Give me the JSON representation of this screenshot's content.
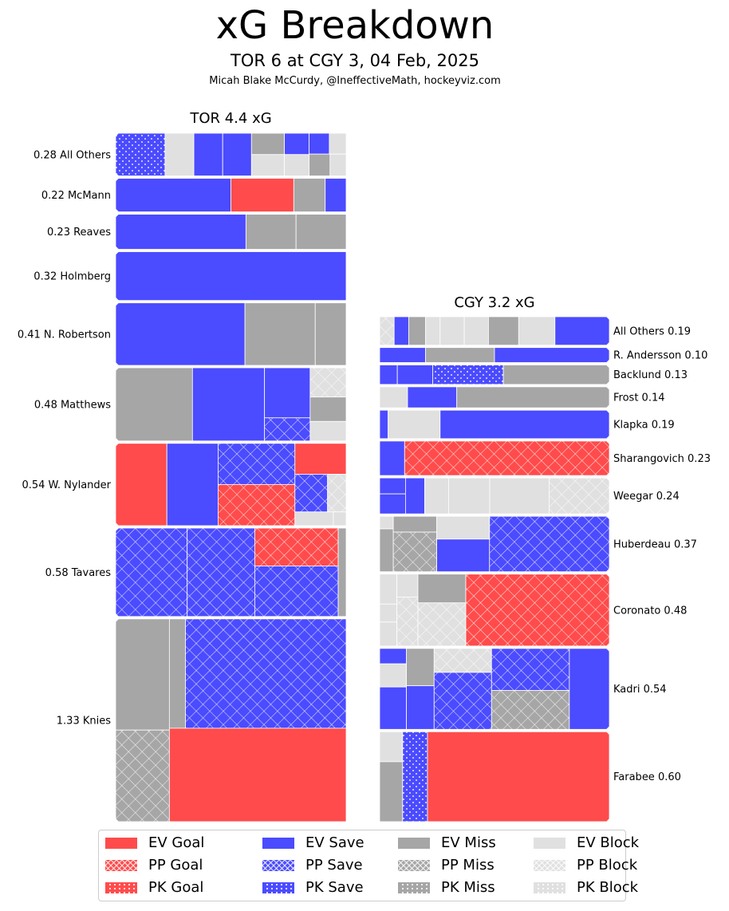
{
  "title": "xG Breakdown",
  "subtitle": "TOR 6 at CGY 3, 04 Feb, 2025",
  "credit": "Micah Blake McCurdy, @IneffectiveMath, hockeyviz.com",
  "colors": {
    "goal": "#ff4b4b",
    "save": "#4b4bff",
    "miss": "#a6a6a6",
    "block": "#e0e0e0"
  },
  "legend": {
    "items": [
      {
        "label": "EV Goal",
        "outcome": "goal",
        "situation": "EV"
      },
      {
        "label": "PP Goal",
        "outcome": "goal",
        "situation": "PP"
      },
      {
        "label": "PK Goal",
        "outcome": "goal",
        "situation": "PK"
      },
      {
        "label": "EV Save",
        "outcome": "save",
        "situation": "EV"
      },
      {
        "label": "PP Save",
        "outcome": "save",
        "situation": "PP"
      },
      {
        "label": "PK Save",
        "outcome": "save",
        "situation": "PK"
      },
      {
        "label": "EV Miss",
        "outcome": "miss",
        "situation": "EV"
      },
      {
        "label": "PP Miss",
        "outcome": "miss",
        "situation": "PP"
      },
      {
        "label": "PK Miss",
        "outcome": "miss",
        "situation": "PK"
      },
      {
        "label": "EV Block",
        "outcome": "block",
        "situation": "EV"
      },
      {
        "label": "PP Block",
        "outcome": "block",
        "situation": "PP"
      },
      {
        "label": "PK Block",
        "outcome": "block",
        "situation": "PK"
      }
    ]
  },
  "chart_data": [
    {
      "type": "treemap",
      "team": "TOR",
      "title": "TOR 4.4 xG",
      "total_xg": 4.4,
      "players": [
        {
          "name": "All Others",
          "label": "0.28 All Others",
          "xg": 0.28,
          "shots": [
            {
              "o": "save",
              "s": "PK",
              "xg": 0.06
            },
            {
              "o": "block",
              "s": "EV",
              "xg": 0.035
            },
            {
              "o": "save",
              "s": "EV",
              "xg": 0.035
            },
            {
              "o": "save",
              "s": "EV",
              "xg": 0.035
            },
            {
              "o": "miss",
              "s": "EV",
              "xg": 0.02
            },
            {
              "o": "block",
              "s": "EV",
              "xg": 0.02
            },
            {
              "o": "save",
              "s": "EV",
              "xg": 0.015
            },
            {
              "o": "block",
              "s": "EV",
              "xg": 0.015
            },
            {
              "o": "save",
              "s": "EV",
              "xg": 0.012
            },
            {
              "o": "block",
              "s": "EV",
              "xg": 0.01
            },
            {
              "o": "miss",
              "s": "EV",
              "xg": 0.013
            },
            {
              "o": "block",
              "s": "EV",
              "xg": 0.01
            }
          ]
        },
        {
          "name": "McMann",
          "label": "0.22 McMann",
          "xg": 0.22,
          "shots": [
            {
              "o": "save",
              "s": "EV",
              "xg": 0.11
            },
            {
              "o": "goal",
              "s": "EV",
              "xg": 0.06
            },
            {
              "o": "miss",
              "s": "EV",
              "xg": 0.03
            },
            {
              "o": "save",
              "s": "EV",
              "xg": 0.02
            }
          ]
        },
        {
          "name": "Reaves",
          "label": "0.23 Reaves",
          "xg": 0.23,
          "shots": [
            {
              "o": "save",
              "s": "EV",
              "xg": 0.13
            },
            {
              "o": "miss",
              "s": "EV",
              "xg": 0.05
            },
            {
              "o": "miss",
              "s": "EV",
              "xg": 0.05
            }
          ]
        },
        {
          "name": "Holmberg",
          "label": "0.32 Holmberg",
          "xg": 0.32,
          "shots": [
            {
              "o": "save",
              "s": "EV",
              "xg": 0.32
            }
          ]
        },
        {
          "name": "N. Robertson",
          "label": "0.41 N. Robertson",
          "xg": 0.41,
          "shots": [
            {
              "o": "save",
              "s": "EV",
              "xg": 0.23
            },
            {
              "o": "miss",
              "s": "EV",
              "xg": 0.125
            },
            {
              "o": "miss",
              "s": "EV",
              "xg": 0.055
            }
          ]
        },
        {
          "name": "Matthews",
          "label": "0.48 Matthews",
          "xg": 0.48,
          "shots": [
            {
              "o": "miss",
              "s": "EV",
              "xg": 0.16
            },
            {
              "o": "save",
              "s": "EV",
              "xg": 0.15
            },
            {
              "o": "save",
              "s": "EV",
              "xg": 0.065
            },
            {
              "o": "save",
              "s": "PP",
              "xg": 0.03
            },
            {
              "o": "block",
              "s": "PP",
              "xg": 0.03
            },
            {
              "o": "miss",
              "s": "EV",
              "xg": 0.025
            },
            {
              "o": "block",
              "s": "EV",
              "xg": 0.02
            }
          ]
        },
        {
          "name": "W. Nylander",
          "label": "0.54 W. Nylander",
          "xg": 0.54,
          "shots": [
            {
              "o": "goal",
              "s": "EV",
              "xg": 0.12
            },
            {
              "o": "save",
              "s": "EV",
              "xg": 0.12
            },
            {
              "o": "save",
              "s": "PP",
              "xg": 0.09
            },
            {
              "o": "goal",
              "s": "PP",
              "xg": 0.09
            },
            {
              "o": "goal",
              "s": "EV",
              "xg": 0.045
            },
            {
              "o": "save",
              "s": "PP",
              "xg": 0.035
            },
            {
              "o": "block",
              "s": "PP",
              "xg": 0.02
            },
            {
              "o": "block",
              "s": "EV",
              "xg": 0.015
            },
            {
              "o": "block",
              "s": "EV",
              "xg": 0.005
            }
          ]
        },
        {
          "name": "Tavares",
          "label": "0.58 Tavares",
          "xg": 0.58,
          "shots": [
            {
              "o": "save",
              "s": "PP",
              "xg": 0.18
            },
            {
              "o": "save",
              "s": "PP",
              "xg": 0.17
            },
            {
              "o": "goal",
              "s": "PP",
              "xg": 0.09
            },
            {
              "o": "save",
              "s": "PP",
              "xg": 0.12
            },
            {
              "o": "miss",
              "s": "EV",
              "xg": 0.02
            }
          ]
        },
        {
          "name": "Knies",
          "label": "1.33 Knies",
          "xg": 1.33,
          "shots": [
            {
              "o": "miss",
              "s": "EV",
              "xg": 0.17
            },
            {
              "o": "miss",
              "s": "PP",
              "xg": 0.14
            },
            {
              "o": "miss",
              "s": "EV",
              "xg": 0.05
            },
            {
              "o": "save",
              "s": "PP",
              "xg": 0.5
            },
            {
              "o": "goal",
              "s": "EV",
              "xg": 0.47
            }
          ]
        }
      ]
    },
    {
      "type": "treemap",
      "team": "CGY",
      "title": "CGY 3.2 xG",
      "total_xg": 3.2,
      "players": [
        {
          "name": "All Others",
          "label": "All Others 0.19",
          "xg": 0.19,
          "shots": [
            {
              "o": "block",
              "s": "PP",
              "xg": 0.012
            },
            {
              "o": "save",
              "s": "EV",
              "xg": 0.012
            },
            {
              "o": "miss",
              "s": "EV",
              "xg": 0.014
            },
            {
              "o": "block",
              "s": "EV",
              "xg": 0.012
            },
            {
              "o": "block",
              "s": "EV",
              "xg": 0.02
            },
            {
              "o": "block",
              "s": "EV",
              "xg": 0.02
            },
            {
              "o": "miss",
              "s": "EV",
              "xg": 0.025
            },
            {
              "o": "block",
              "s": "EV",
              "xg": 0.03
            },
            {
              "o": "save",
              "s": "EV",
              "xg": 0.045
            }
          ]
        },
        {
          "name": "R. Andersson",
          "label": "R. Andersson 0.10",
          "xg": 0.1,
          "shots": [
            {
              "o": "save",
              "s": "EV",
              "xg": 0.02
            },
            {
              "o": "miss",
              "s": "EV",
              "xg": 0.03
            },
            {
              "o": "save",
              "s": "EV",
              "xg": 0.05
            }
          ]
        },
        {
          "name": "Backlund",
          "label": "Backlund 0.13",
          "xg": 0.13,
          "shots": [
            {
              "o": "save",
              "s": "EV",
              "xg": 0.01
            },
            {
              "o": "save",
              "s": "EV",
              "xg": 0.02
            },
            {
              "o": "save",
              "s": "PK",
              "xg": 0.04
            },
            {
              "o": "miss",
              "s": "EV",
              "xg": 0.06
            }
          ]
        },
        {
          "name": "Frost",
          "label": "Frost 0.14",
          "xg": 0.14,
          "shots": [
            {
              "o": "block",
              "s": "EV",
              "xg": 0.017
            },
            {
              "o": "save",
              "s": "EV",
              "xg": 0.03
            },
            {
              "o": "miss",
              "s": "EV",
              "xg": 0.093
            }
          ]
        },
        {
          "name": "Klapka",
          "label": "Klapka 0.19",
          "xg": 0.19,
          "shots": [
            {
              "o": "save",
              "s": "EV",
              "xg": 0.007
            },
            {
              "o": "block",
              "s": "EV",
              "xg": 0.043
            },
            {
              "o": "save",
              "s": "EV",
              "xg": 0.14
            }
          ]
        },
        {
          "name": "Sharangovich",
          "label": "Sharangovich 0.23",
          "xg": 0.23,
          "shots": [
            {
              "o": "save",
              "s": "EV",
              "xg": 0.025
            },
            {
              "o": "goal",
              "s": "PP",
              "xg": 0.205
            }
          ]
        },
        {
          "name": "Weegar",
          "label": "Weegar 0.24",
          "xg": 0.24,
          "shots": [
            {
              "o": "save",
              "s": "EV",
              "xg": 0.012
            },
            {
              "o": "save",
              "s": "EV",
              "xg": 0.015
            },
            {
              "o": "save",
              "s": "EV",
              "xg": 0.02
            },
            {
              "o": "block",
              "s": "EV",
              "xg": 0.025
            },
            {
              "o": "block",
              "s": "EV",
              "xg": 0.043
            },
            {
              "o": "block",
              "s": "EV",
              "xg": 0.062
            },
            {
              "o": "block",
              "s": "PP",
              "xg": 0.063
            }
          ]
        },
        {
          "name": "Huberdeau",
          "label": "Huberdeau 0.37",
          "xg": 0.37,
          "shots": [
            {
              "o": "block",
              "s": "EV",
              "xg": 0.005
            },
            {
              "o": "miss",
              "s": "EV",
              "xg": 0.017
            },
            {
              "o": "miss",
              "s": "EV",
              "xg": 0.02
            },
            {
              "o": "miss",
              "s": "PP",
              "xg": 0.05
            },
            {
              "o": "block",
              "s": "EV",
              "xg": 0.035
            },
            {
              "o": "save",
              "s": "EV",
              "xg": 0.05
            },
            {
              "o": "save",
              "s": "PP",
              "xg": 0.193
            }
          ]
        },
        {
          "name": "Coronato",
          "label": "Coronato 0.48",
          "xg": 0.48,
          "shots": [
            {
              "o": "block",
              "s": "EV",
              "xg": 0.015
            },
            {
              "o": "block",
              "s": "EV",
              "xg": 0.009
            },
            {
              "o": "block",
              "s": "EV",
              "xg": 0.012
            },
            {
              "o": "block",
              "s": "EV",
              "xg": 0.014
            },
            {
              "o": "block",
              "s": "PP",
              "xg": 0.03
            },
            {
              "o": "miss",
              "s": "EV",
              "xg": 0.04
            },
            {
              "o": "block",
              "s": "PP",
              "xg": 0.06
            },
            {
              "o": "goal",
              "s": "PP",
              "xg": 0.3
            }
          ]
        },
        {
          "name": "Kadri",
          "label": "Kadri 0.54",
          "xg": 0.54,
          "shots": [
            {
              "o": "save",
              "s": "EV",
              "xg": 0.012
            },
            {
              "o": "block",
              "s": "EV",
              "xg": 0.018
            },
            {
              "o": "save",
              "s": "EV",
              "xg": 0.033
            },
            {
              "o": "miss",
              "s": "EV",
              "xg": 0.03
            },
            {
              "o": "save",
              "s": "EV",
              "xg": 0.035
            },
            {
              "o": "block",
              "s": "PP",
              "xg": 0.04
            },
            {
              "o": "save",
              "s": "PP",
              "xg": 0.095
            },
            {
              "o": "save",
              "s": "PP",
              "xg": 0.095
            },
            {
              "o": "miss",
              "s": "PP",
              "xg": 0.088
            },
            {
              "o": "save",
              "s": "EV",
              "xg": 0.094
            }
          ]
        },
        {
          "name": "Farabee",
          "label": "Farabee 0.60",
          "xg": 0.6,
          "shots": [
            {
              "o": "block",
              "s": "EV",
              "xg": 0.02
            },
            {
              "o": "miss",
              "s": "EV",
              "xg": 0.04
            },
            {
              "o": "save",
              "s": "PK",
              "xg": 0.065
            },
            {
              "o": "goal",
              "s": "EV",
              "xg": 0.475
            }
          ]
        }
      ]
    }
  ]
}
